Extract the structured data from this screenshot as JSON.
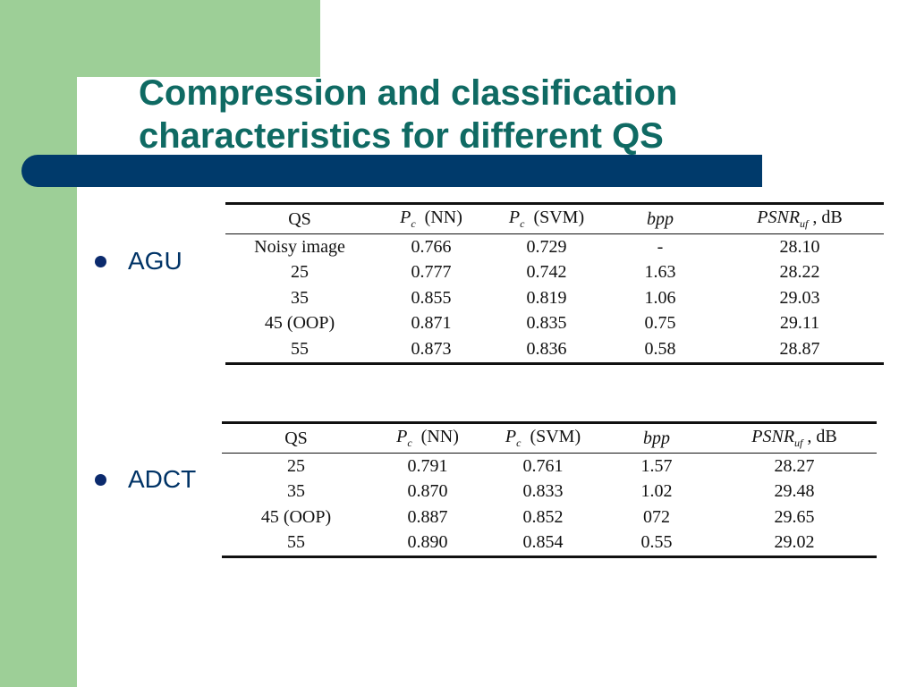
{
  "colors": {
    "green_panel": "#9dcf97",
    "title_color": "#0f6a63",
    "bar_color": "#003a6b",
    "bullet_color": "#003366"
  },
  "slide": {
    "title_line1": "Compression and classification",
    "title_line2": "characteristics for different QS"
  },
  "bullets": [
    {
      "label": "AGU"
    },
    {
      "label": "ADCT"
    }
  ],
  "tables": [
    {
      "header": {
        "qs": "QS",
        "pc": "P",
        "pc_sub": "c",
        "nn": "(NN)",
        "svm": "(SVM)",
        "bpp": "bpp",
        "psnr": "PSNR",
        "psnr_sub": "uf",
        "db": ", dB"
      },
      "rows": [
        [
          "Noisy image",
          "0.766",
          "0.729",
          "-",
          "28.10"
        ],
        [
          "25",
          "0.777",
          "0.742",
          "1.63",
          "28.22"
        ],
        [
          "35",
          "0.855",
          "0.819",
          "1.06",
          "29.03"
        ],
        [
          "45 (OOP)",
          "0.871",
          "0.835",
          "0.75",
          "29.11"
        ],
        [
          "55",
          "0.873",
          "0.836",
          "0.58",
          "28.87"
        ]
      ]
    },
    {
      "header": {
        "qs": "QS",
        "pc": "P",
        "pc_sub": "c",
        "nn": "(NN)",
        "svm": "(SVM)",
        "bpp": "bpp",
        "psnr": "PSNR",
        "psnr_sub": "uf",
        "db": ", dB"
      },
      "rows": [
        [
          "25",
          "0.791",
          "0.761",
          "1.57",
          "28.27"
        ],
        [
          "35",
          "0.870",
          "0.833",
          "1.02",
          "29.48"
        ],
        [
          "45 (OOP)",
          "0.887",
          "0.852",
          "072",
          "29.65"
        ],
        [
          "55",
          "0.890",
          "0.854",
          "0.55",
          "29.02"
        ]
      ]
    }
  ]
}
